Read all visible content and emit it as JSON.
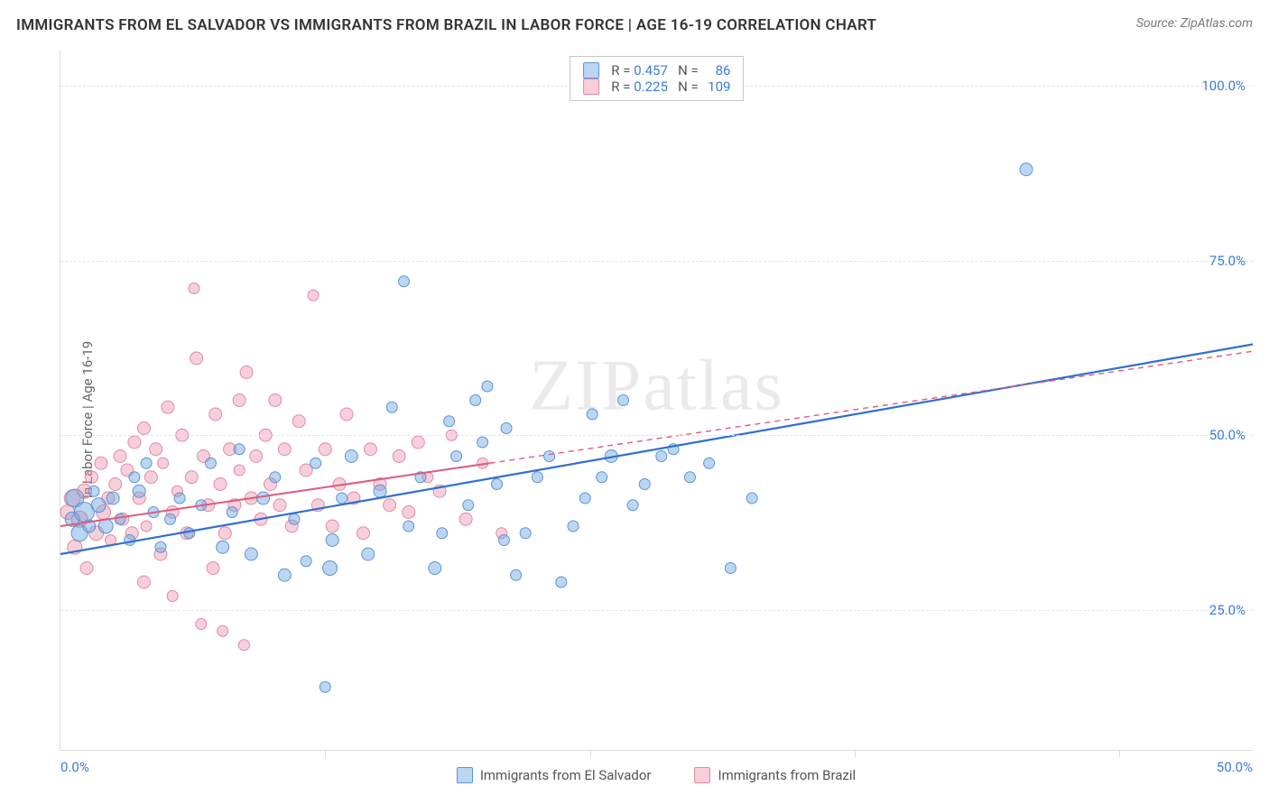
{
  "title": "IMMIGRANTS FROM EL SALVADOR VS IMMIGRANTS FROM BRAZIL IN LABOR FORCE | AGE 16-19 CORRELATION CHART",
  "source": "Source: ZipAtlas.com",
  "watermark": "ZIPatlas",
  "ylabel": "In Labor Force | Age 16-19",
  "chart": {
    "type": "scatter",
    "xlim": [
      0,
      50
    ],
    "ylim": [
      5,
      105
    ],
    "x_ticks": [
      0,
      50
    ],
    "x_tick_labels": [
      "0.0%",
      "50.0%"
    ],
    "x_minor_ticks": [
      11.1,
      22.2,
      33.3,
      44.4
    ],
    "y_ticks": [
      25,
      50,
      75,
      100
    ],
    "y_tick_labels": [
      "25.0%",
      "50.0%",
      "75.0%",
      "100.0%"
    ],
    "background_color": "#ffffff",
    "grid_color": "#e2e2e2",
    "marker_radius_min": 5,
    "marker_radius_max": 11,
    "series": [
      {
        "name": "Immigrants from El Salvador",
        "fill": "rgba(107,163,225,0.45)",
        "stroke": "#5a94d6",
        "line_color": "#2f6fd0",
        "line_width": 2.2,
        "trend": {
          "x1": 0,
          "y1": 33,
          "x2": 50,
          "y2": 63,
          "solid_until_x": 50
        },
        "stats": {
          "R": "0.457",
          "N": "86"
        },
        "points": [
          [
            0.5,
            38,
            8
          ],
          [
            0.6,
            41,
            10
          ],
          [
            0.8,
            36,
            9
          ],
          [
            1.0,
            39,
            11
          ],
          [
            1.2,
            37,
            7
          ],
          [
            1.4,
            42,
            6
          ],
          [
            1.6,
            40,
            8
          ],
          [
            1.9,
            37,
            8
          ],
          [
            2.2,
            41,
            7
          ],
          [
            2.5,
            38,
            6
          ],
          [
            2.9,
            35,
            6
          ],
          [
            3.1,
            44,
            6
          ],
          [
            3.3,
            42,
            7
          ],
          [
            3.6,
            46,
            6
          ],
          [
            3.9,
            39,
            6
          ],
          [
            4.2,
            34,
            6
          ],
          [
            4.6,
            38,
            6
          ],
          [
            5.0,
            41,
            6
          ],
          [
            5.4,
            36,
            6
          ],
          [
            5.9,
            40,
            6
          ],
          [
            6.3,
            46,
            6
          ],
          [
            6.8,
            34,
            7
          ],
          [
            7.2,
            39,
            6
          ],
          [
            7.5,
            48,
            6
          ],
          [
            8.0,
            33,
            7
          ],
          [
            8.5,
            41,
            7
          ],
          [
            9.0,
            44,
            6
          ],
          [
            9.4,
            30,
            7
          ],
          [
            9.8,
            38,
            6
          ],
          [
            10.3,
            32,
            6
          ],
          [
            10.7,
            46,
            6
          ],
          [
            11.1,
            14,
            6
          ],
          [
            11.3,
            31,
            8
          ],
          [
            11.4,
            35,
            7
          ],
          [
            11.8,
            41,
            6
          ],
          [
            12.2,
            47,
            7
          ],
          [
            12.9,
            33,
            7
          ],
          [
            13.4,
            42,
            7
          ],
          [
            13.9,
            54,
            6
          ],
          [
            14.4,
            72,
            6
          ],
          [
            14.6,
            37,
            6
          ],
          [
            15.1,
            44,
            6
          ],
          [
            15.7,
            31,
            7
          ],
          [
            16.0,
            36,
            6
          ],
          [
            16.3,
            52,
            6
          ],
          [
            16.6,
            47,
            6
          ],
          [
            17.1,
            40,
            6
          ],
          [
            17.4,
            55,
            6
          ],
          [
            17.7,
            49,
            6
          ],
          [
            17.9,
            57,
            6
          ],
          [
            18.3,
            43,
            6
          ],
          [
            18.6,
            35,
            6
          ],
          [
            18.7,
            51,
            6
          ],
          [
            19.1,
            30,
            6
          ],
          [
            19.5,
            36,
            6
          ],
          [
            20.0,
            44,
            6
          ],
          [
            20.5,
            47,
            6
          ],
          [
            21.0,
            29,
            6
          ],
          [
            21.5,
            37,
            6
          ],
          [
            22.0,
            41,
            6
          ],
          [
            22.3,
            53,
            6
          ],
          [
            22.7,
            44,
            6
          ],
          [
            23.1,
            47,
            7
          ],
          [
            23.6,
            55,
            6
          ],
          [
            24.0,
            40,
            6
          ],
          [
            24.5,
            43,
            6
          ],
          [
            25.2,
            47,
            6
          ],
          [
            25.7,
            48,
            6
          ],
          [
            26.4,
            44,
            6
          ],
          [
            27.2,
            46,
            6
          ],
          [
            28.1,
            31,
            6
          ],
          [
            29.0,
            41,
            6
          ],
          [
            40.5,
            88,
            7
          ]
        ]
      },
      {
        "name": "Immigrants from Brazil",
        "fill": "rgba(236,140,166,0.42)",
        "stroke": "#e08aa3",
        "line_color": "#e05a7e",
        "line_width": 2.0,
        "trend": {
          "x1": 0,
          "y1": 37,
          "x2": 50,
          "y2": 62,
          "solid_until_x": 18
        },
        "stats": {
          "R": "0.225",
          "N": "109"
        },
        "points": [
          [
            0.3,
            39,
            8
          ],
          [
            0.5,
            41,
            9
          ],
          [
            0.6,
            34,
            8
          ],
          [
            0.8,
            38,
            9
          ],
          [
            1.0,
            42,
            8
          ],
          [
            1.1,
            31,
            7
          ],
          [
            1.3,
            44,
            7
          ],
          [
            1.5,
            36,
            8
          ],
          [
            1.7,
            46,
            7
          ],
          [
            1.8,
            39,
            8
          ],
          [
            2.0,
            41,
            7
          ],
          [
            2.1,
            35,
            6
          ],
          [
            2.3,
            43,
            7
          ],
          [
            2.5,
            47,
            7
          ],
          [
            2.6,
            38,
            7
          ],
          [
            2.8,
            45,
            7
          ],
          [
            3.0,
            36,
            7
          ],
          [
            3.1,
            49,
            7
          ],
          [
            3.3,
            41,
            7
          ],
          [
            3.5,
            51,
            7
          ],
          [
            3.5,
            29,
            7
          ],
          [
            3.6,
            37,
            6
          ],
          [
            3.8,
            44,
            7
          ],
          [
            4.0,
            48,
            7
          ],
          [
            4.2,
            33,
            7
          ],
          [
            4.3,
            46,
            6
          ],
          [
            4.5,
            54,
            7
          ],
          [
            4.7,
            27,
            6
          ],
          [
            4.7,
            39,
            7
          ],
          [
            4.9,
            42,
            6
          ],
          [
            5.1,
            50,
            7
          ],
          [
            5.3,
            36,
            7
          ],
          [
            5.5,
            44,
            7
          ],
          [
            5.6,
            71,
            6
          ],
          [
            5.7,
            61,
            7
          ],
          [
            5.9,
            23,
            6
          ],
          [
            6.0,
            47,
            7
          ],
          [
            6.2,
            40,
            7
          ],
          [
            6.4,
            31,
            7
          ],
          [
            6.5,
            53,
            7
          ],
          [
            6.7,
            43,
            7
          ],
          [
            6.8,
            22,
            6
          ],
          [
            6.9,
            36,
            7
          ],
          [
            7.1,
            48,
            7
          ],
          [
            7.3,
            40,
            7
          ],
          [
            7.5,
            45,
            6
          ],
          [
            7.5,
            55,
            7
          ],
          [
            7.7,
            20,
            6
          ],
          [
            7.8,
            59,
            7
          ],
          [
            8.0,
            41,
            7
          ],
          [
            8.2,
            47,
            7
          ],
          [
            8.4,
            38,
            7
          ],
          [
            8.6,
            50,
            7
          ],
          [
            8.8,
            43,
            7
          ],
          [
            9.0,
            55,
            7
          ],
          [
            9.2,
            40,
            7
          ],
          [
            9.4,
            48,
            7
          ],
          [
            9.7,
            37,
            7
          ],
          [
            10.0,
            52,
            7
          ],
          [
            10.3,
            45,
            7
          ],
          [
            10.6,
            70,
            6
          ],
          [
            10.8,
            40,
            7
          ],
          [
            11.1,
            48,
            7
          ],
          [
            11.4,
            37,
            7
          ],
          [
            11.7,
            43,
            7
          ],
          [
            12.0,
            53,
            7
          ],
          [
            12.3,
            41,
            7
          ],
          [
            12.7,
            36,
            7
          ],
          [
            13.0,
            48,
            7
          ],
          [
            13.4,
            43,
            7
          ],
          [
            13.8,
            40,
            7
          ],
          [
            14.2,
            47,
            7
          ],
          [
            14.6,
            39,
            7
          ],
          [
            15.0,
            49,
            7
          ],
          [
            15.4,
            44,
            6
          ],
          [
            15.9,
            42,
            7
          ],
          [
            16.4,
            50,
            6
          ],
          [
            17.0,
            38,
            7
          ],
          [
            17.7,
            46,
            6
          ],
          [
            18.5,
            36,
            6
          ]
        ]
      }
    ]
  },
  "bottom_legend": [
    {
      "label": "Immigrants from El Salvador",
      "fill": "rgba(107,163,225,0.45)",
      "border": "#5a94d6"
    },
    {
      "label": "Immigrants from Brazil",
      "fill": "rgba(236,140,166,0.42)",
      "border": "#e08aa3"
    }
  ]
}
